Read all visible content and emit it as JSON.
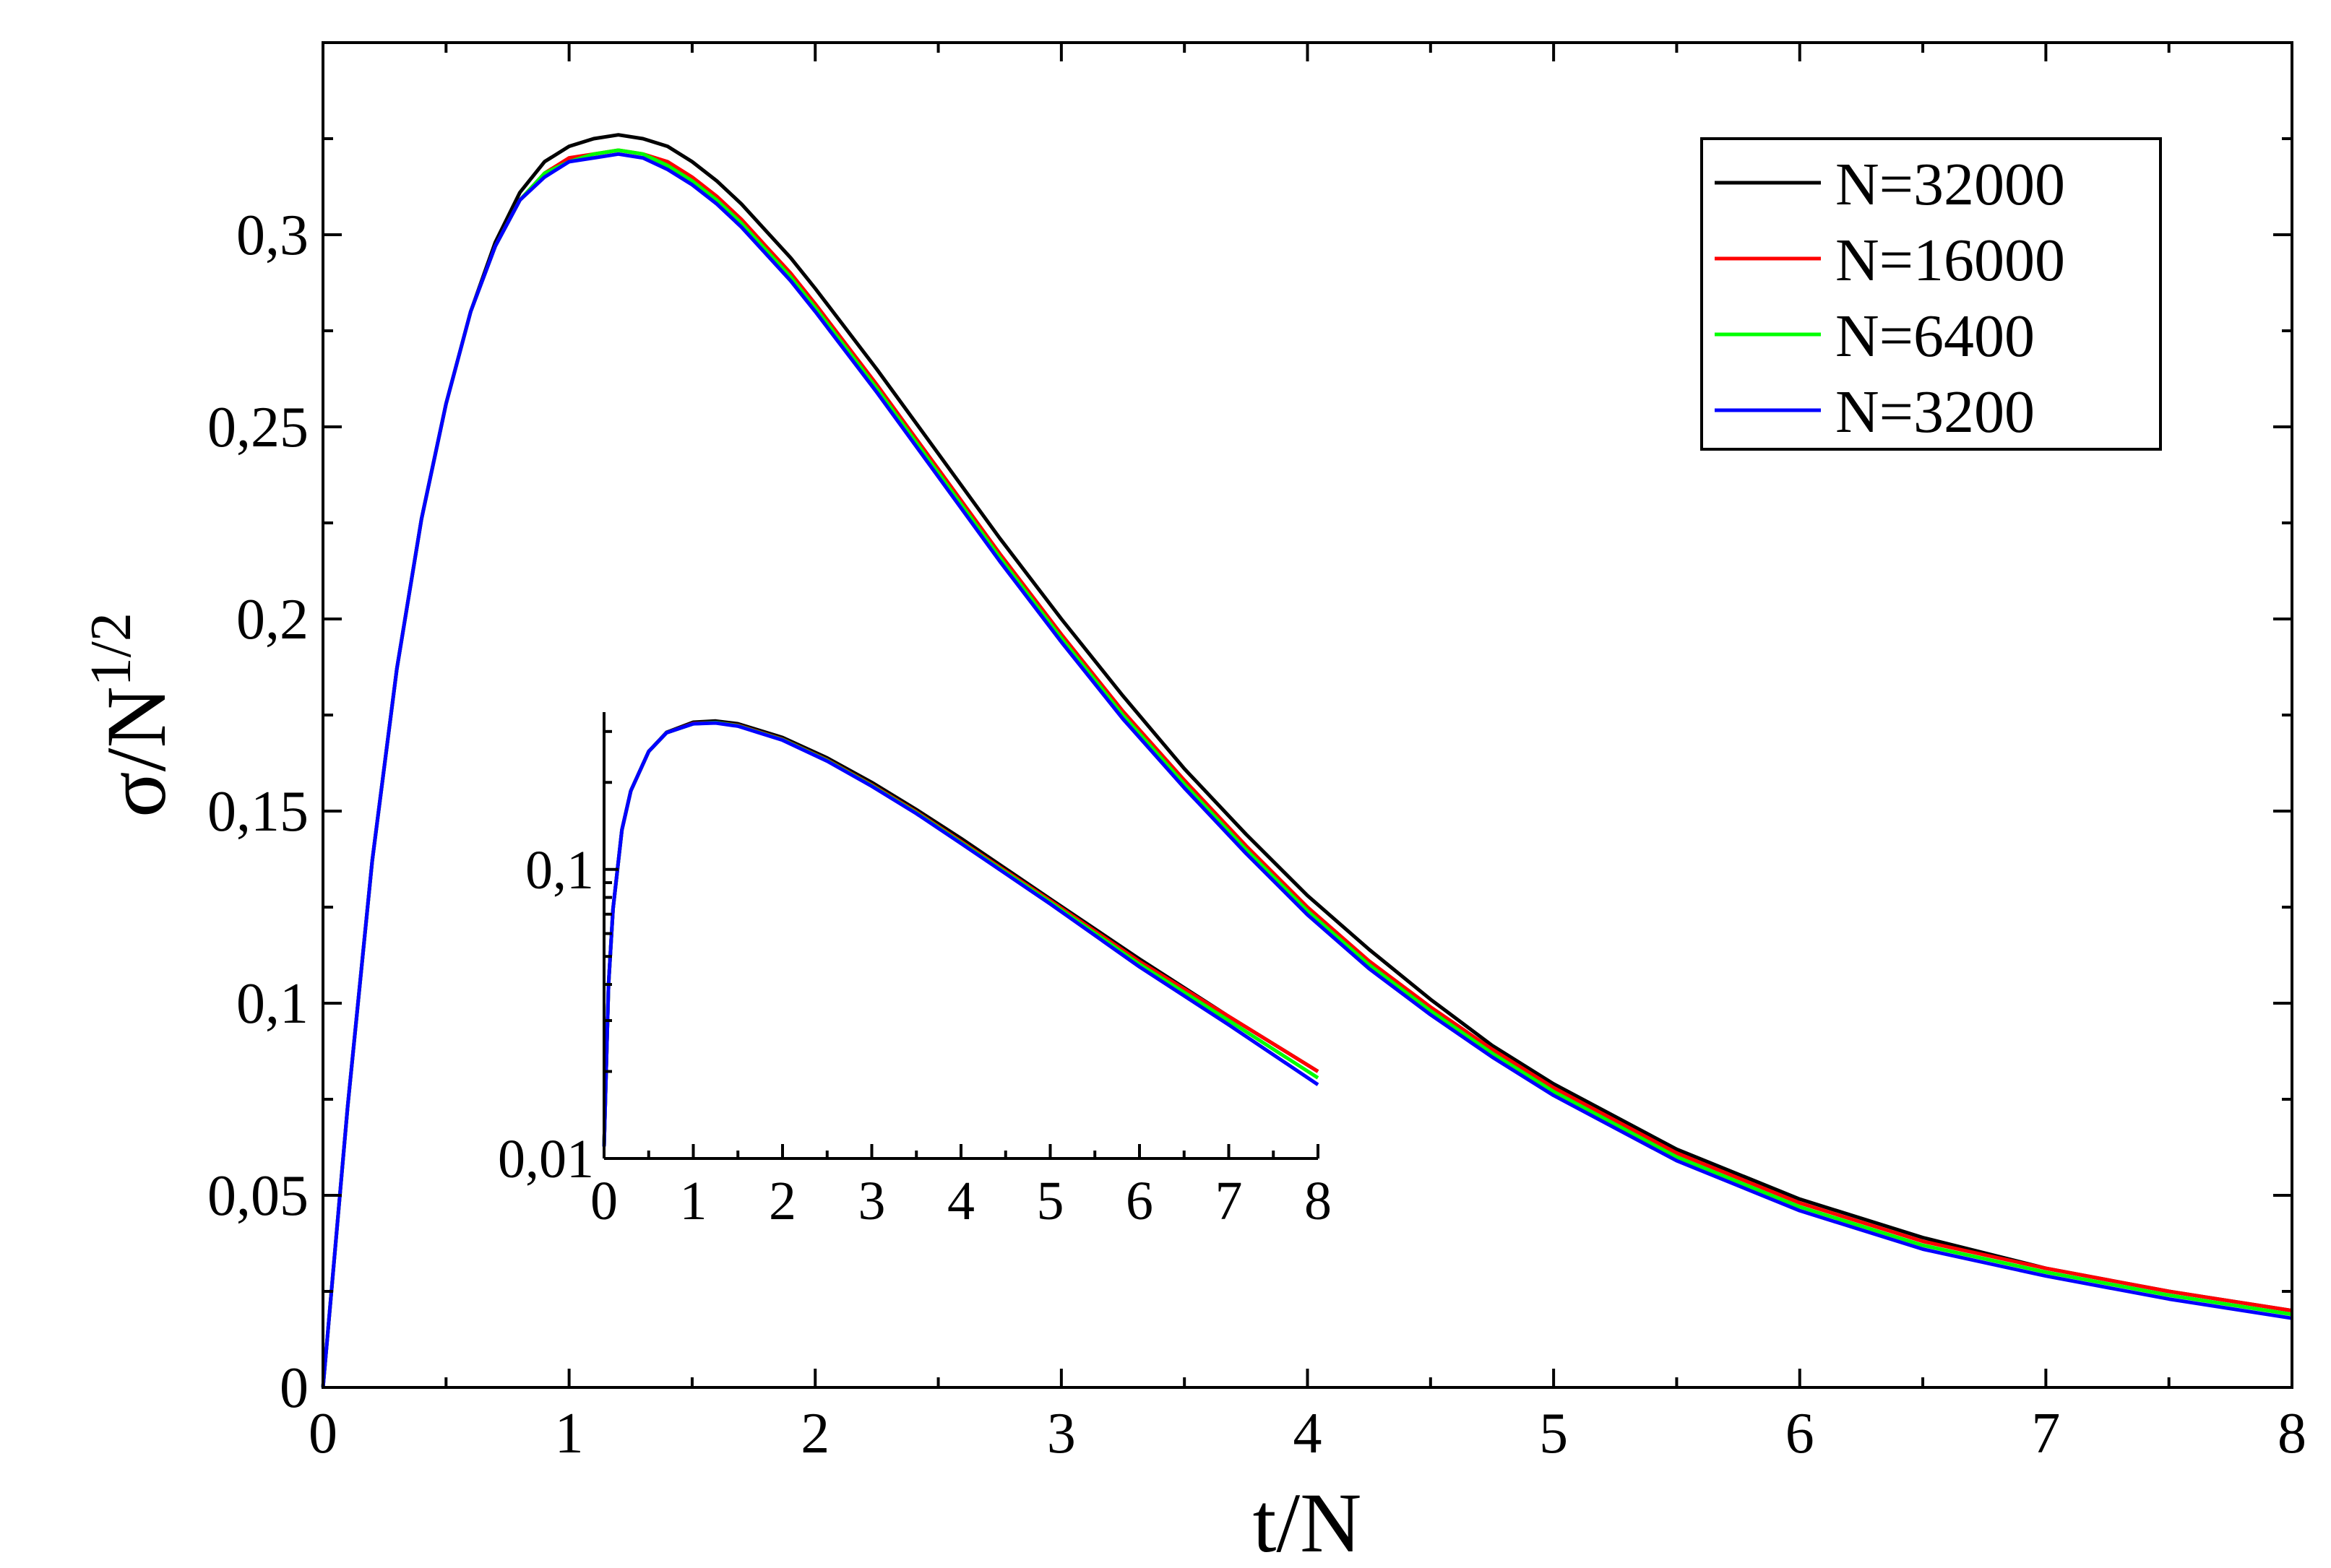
{
  "chart_data": [
    {
      "id": "main",
      "type": "line",
      "title": "",
      "xlabel": "t/N",
      "ylabel_base": "σ/N",
      "ylabel_exponent": "1/2",
      "xlim": [
        0,
        8
      ],
      "ylim": [
        0,
        0.35
      ],
      "x_ticks": [
        0,
        1,
        2,
        3,
        4,
        5,
        6,
        7,
        8
      ],
      "x_tick_labels": [
        "0",
        "1",
        "2",
        "3",
        "4",
        "5",
        "6",
        "7",
        "8"
      ],
      "y_ticks": [
        0,
        0.05,
        0.1,
        0.15,
        0.2,
        0.25,
        0.3
      ],
      "y_tick_labels": [
        "0",
        "0,05",
        "0,1",
        "0,15",
        "0,2",
        "0,25",
        "0,3"
      ],
      "legend_position": "top-right",
      "x": [
        0,
        0.1,
        0.2,
        0.3,
        0.4,
        0.5,
        0.6,
        0.7,
        0.8,
        0.9,
        1.0,
        1.1,
        1.2,
        1.3,
        1.4,
        1.5,
        1.6,
        1.7,
        1.8,
        1.9,
        2.0,
        2.25,
        2.5,
        2.75,
        3.0,
        3.25,
        3.5,
        3.75,
        4.0,
        4.25,
        4.5,
        4.75,
        5.0,
        5.5,
        6.0,
        6.5,
        7.0,
        7.5,
        8.0
      ],
      "series": [
        {
          "name": "N=32000",
          "color": "#000000",
          "values": [
            0,
            0.073,
            0.137,
            0.187,
            0.226,
            0.256,
            0.28,
            0.298,
            0.311,
            0.319,
            0.323,
            0.325,
            0.326,
            0.325,
            0.323,
            0.319,
            0.314,
            0.308,
            0.301,
            0.294,
            0.286,
            0.265,
            0.243,
            0.221,
            0.2,
            0.18,
            0.161,
            0.144,
            0.128,
            0.114,
            0.101,
            0.089,
            0.079,
            0.062,
            0.049,
            0.039,
            0.031,
            0.025,
            0.02
          ]
        },
        {
          "name": "N=16000",
          "color": "#ff0000",
          "values": [
            0,
            0.073,
            0.137,
            0.187,
            0.226,
            0.256,
            0.28,
            0.297,
            0.309,
            0.316,
            0.32,
            0.321,
            0.322,
            0.321,
            0.319,
            0.315,
            0.31,
            0.304,
            0.297,
            0.29,
            0.282,
            0.261,
            0.239,
            0.217,
            0.196,
            0.176,
            0.158,
            0.141,
            0.125,
            0.111,
            0.099,
            0.088,
            0.078,
            0.061,
            0.048,
            0.038,
            0.031,
            0.025,
            0.02
          ]
        },
        {
          "name": "N=6400",
          "color": "#00ff00",
          "values": [
            0,
            0.073,
            0.137,
            0.187,
            0.226,
            0.256,
            0.28,
            0.297,
            0.309,
            0.316,
            0.319,
            0.321,
            0.322,
            0.321,
            0.318,
            0.314,
            0.309,
            0.303,
            0.296,
            0.289,
            0.281,
            0.26,
            0.238,
            0.216,
            0.195,
            0.175,
            0.157,
            0.14,
            0.124,
            0.11,
            0.098,
            0.087,
            0.077,
            0.06,
            0.047,
            0.037,
            0.03,
            0.024,
            0.019
          ]
        },
        {
          "name": "N=3200",
          "color": "#0000ff",
          "values": [
            0,
            0.073,
            0.137,
            0.187,
            0.226,
            0.256,
            0.28,
            0.297,
            0.309,
            0.315,
            0.319,
            0.32,
            0.321,
            0.32,
            0.317,
            0.313,
            0.308,
            0.302,
            0.295,
            0.288,
            0.28,
            0.259,
            0.237,
            0.215,
            0.194,
            0.174,
            0.156,
            0.139,
            0.123,
            0.109,
            0.097,
            0.086,
            0.076,
            0.059,
            0.046,
            0.036,
            0.029,
            0.023,
            0.018
          ]
        }
      ]
    },
    {
      "id": "inset",
      "type": "line",
      "yscale": "log",
      "xlim": [
        0,
        8
      ],
      "ylim": [
        0.01,
        0.35
      ],
      "x_ticks": [
        0,
        1,
        2,
        3,
        4,
        5,
        6,
        7,
        8
      ],
      "x_tick_labels": [
        "0",
        "1",
        "2",
        "3",
        "4",
        "5",
        "6",
        "7",
        "8"
      ],
      "y_ticks": [
        0.01,
        0.1
      ],
      "y_tick_labels": [
        "0,01",
        "0,1"
      ],
      "x": [
        0,
        0.05,
        0.1,
        0.2,
        0.3,
        0.5,
        0.7,
        1.0,
        1.25,
        1.5,
        2.0,
        2.5,
        3.0,
        3.5,
        4.0,
        5.0,
        6.0,
        7.0,
        8.0
      ],
      "series": [
        {
          "name": "N=32000",
          "color": "#000000",
          "values": [
            0.011,
            0.04,
            0.073,
            0.137,
            0.187,
            0.256,
            0.298,
            0.323,
            0.326,
            0.319,
            0.286,
            0.243,
            0.2,
            0.161,
            0.128,
            0.079,
            0.049,
            0.031,
            0.02
          ]
        },
        {
          "name": "N=16000",
          "color": "#ff0000",
          "values": [
            0.011,
            0.04,
            0.073,
            0.137,
            0.187,
            0.256,
            0.297,
            0.32,
            0.322,
            0.315,
            0.282,
            0.239,
            0.196,
            0.158,
            0.125,
            0.078,
            0.048,
            0.031,
            0.02
          ]
        },
        {
          "name": "N=6400",
          "color": "#00ff00",
          "values": [
            0.011,
            0.04,
            0.073,
            0.137,
            0.187,
            0.256,
            0.297,
            0.319,
            0.322,
            0.314,
            0.281,
            0.238,
            0.195,
            0.157,
            0.124,
            0.077,
            0.047,
            0.03,
            0.019
          ]
        },
        {
          "name": "N=3200",
          "color": "#0000ff",
          "values": [
            0.011,
            0.04,
            0.073,
            0.137,
            0.187,
            0.256,
            0.297,
            0.319,
            0.321,
            0.313,
            0.28,
            0.237,
            0.194,
            0.156,
            0.123,
            0.076,
            0.046,
            0.029,
            0.018
          ]
        }
      ]
    }
  ]
}
